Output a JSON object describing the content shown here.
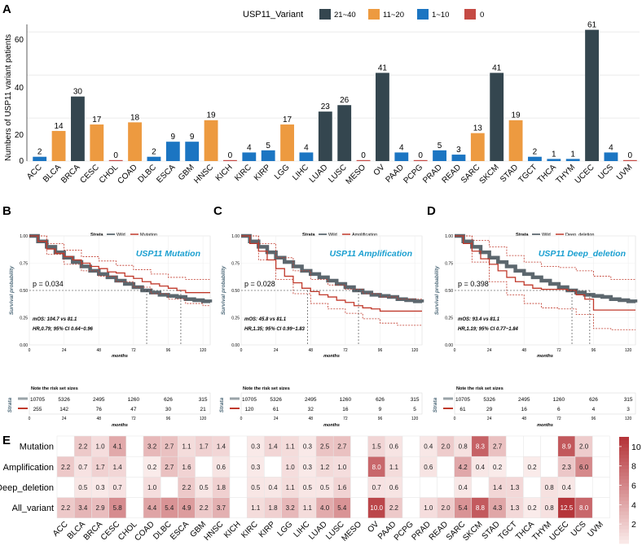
{
  "colors": {
    "c21_40": "#34464f",
    "c11_20": "#ed9a40",
    "c1_10": "#1b75c2",
    "c0": "#c54a44",
    "wild": "#3f4c55",
    "mut": "#c0392b",
    "heat_lo": "#fbeeed",
    "heat_hi": "#b5353a",
    "title": "#1a9fd0"
  },
  "panel_labels": {
    "A": "A",
    "B": "B",
    "C": "C",
    "D": "D",
    "E": "E"
  },
  "bar_panel": {
    "legend_title": "USP11_Variant",
    "legend_items": [
      "21~40",
      "11~20",
      "1~10",
      "0"
    ],
    "ylabel": "Numbers of USP11 variant patients",
    "yticks": [
      "0",
      "20",
      "40",
      "60"
    ]
  },
  "chart_data": [
    {
      "type": "bar",
      "title": "",
      "ylabel": "Numbers of USP11 variant patients",
      "ylim": [
        0,
        62
      ],
      "categories": [
        "ACC",
        "BLCA",
        "BRCA",
        "CESC",
        "CHOL",
        "COAD",
        "DLBC",
        "ESCA",
        "GBM",
        "HNSC",
        "KICH",
        "KIRC",
        "KIRP",
        "LGG",
        "LIHC",
        "LUAD",
        "LUSC",
        "MESO",
        "OV",
        "PAAD",
        "PCPG",
        "PRAD",
        "READ",
        "SARC",
        "SKCM",
        "STAD",
        "TGCT",
        "THCA",
        "THYM",
        "UCEC",
        "UCS",
        "UVM"
      ],
      "values": [
        2,
        14,
        30,
        17,
        0,
        18,
        2,
        9,
        9,
        19,
        0,
        4,
        5,
        17,
        4,
        23,
        26,
        0,
        41,
        4,
        0,
        5,
        3,
        13,
        41,
        19,
        2,
        1,
        1,
        61,
        4,
        0
      ],
      "value_labels": [
        "2",
        "14",
        "30",
        "17",
        "0",
        "18",
        "2",
        "9",
        "9",
        "19",
        "0",
        "4",
        "5",
        "17",
        "4",
        "23",
        "26",
        "0",
        "41",
        "4",
        "0",
        "5",
        "3",
        "13",
        "41",
        "19",
        "2",
        "1",
        "1",
        "61",
        "4",
        "0"
      ]
    },
    {
      "type": "line",
      "panel": "B",
      "title": "USP11 Mutation",
      "legend_title": "Strata",
      "legend": [
        "Wild",
        "Mutation"
      ],
      "xlabel": "months",
      "ylabel": "Survival probability",
      "xticks": [
        "0",
        "24",
        "48",
        "72",
        "96",
        "120"
      ],
      "yticks": [
        "0.00",
        "0.25",
        "0.50",
        "0.75",
        "1.00"
      ],
      "xlim": [
        0,
        125
      ],
      "pvalue": "p = 0.034",
      "stat1": "mOS: 104.7 vs 81.1",
      "stat2": "HR,0.79; 95% CI 0.64~0.96",
      "risk_title": "Note the risk set sizes",
      "risk_label": "Strata",
      "risk_xlabel": "months",
      "risk_wild": [
        "10705",
        "5326",
        "2495",
        "1260",
        "626",
        "315"
      ],
      "risk_variant": [
        "255",
        "142",
        "76",
        "47",
        "30",
        "21"
      ],
      "median_wild": 81.1,
      "median_variant": 104.7,
      "series": [
        {
          "name": "Wild",
          "x": [
            0,
            6,
            12,
            18,
            24,
            30,
            36,
            42,
            48,
            54,
            60,
            66,
            72,
            78,
            84,
            90,
            96,
            102,
            108,
            114,
            120,
            125
          ],
          "y": [
            1.0,
            0.95,
            0.9,
            0.85,
            0.8,
            0.76,
            0.72,
            0.68,
            0.65,
            0.62,
            0.59,
            0.56,
            0.53,
            0.5,
            0.48,
            0.46,
            0.45,
            0.44,
            0.42,
            0.41,
            0.4,
            0.39
          ]
        },
        {
          "name": "Mutation",
          "x": [
            0,
            6,
            12,
            18,
            24,
            30,
            36,
            42,
            48,
            54,
            60,
            66,
            72,
            78,
            84,
            90,
            96,
            102,
            108,
            114,
            120,
            125
          ],
          "y": [
            1.0,
            0.95,
            0.88,
            0.84,
            0.81,
            0.78,
            0.75,
            0.72,
            0.7,
            0.67,
            0.66,
            0.63,
            0.61,
            0.58,
            0.56,
            0.54,
            0.52,
            0.5,
            0.48,
            0.48,
            0.48,
            0.48
          ]
        },
        {
          "name": "Mutation CI upper",
          "x": [
            0,
            12,
            24,
            36,
            48,
            60,
            72,
            84,
            96,
            108,
            120,
            125
          ],
          "y": [
            1.0,
            0.93,
            0.87,
            0.81,
            0.77,
            0.73,
            0.69,
            0.65,
            0.62,
            0.6,
            0.6,
            0.6
          ]
        },
        {
          "name": "Mutation CI lower",
          "x": [
            0,
            12,
            24,
            36,
            48,
            60,
            72,
            84,
            96,
            108,
            120,
            125
          ],
          "y": [
            1.0,
            0.83,
            0.74,
            0.68,
            0.63,
            0.58,
            0.53,
            0.47,
            0.42,
            0.38,
            0.36,
            0.36
          ]
        }
      ]
    },
    {
      "type": "line",
      "panel": "C",
      "title": "USP11 Amplification",
      "legend_title": "Strata",
      "legend": [
        "Wild",
        "Amplification"
      ],
      "xlabel": "months",
      "ylabel": "Survival probability",
      "xticks": [
        "0",
        "24",
        "48",
        "72",
        "96",
        "120"
      ],
      "yticks": [
        "0.00",
        "0.25",
        "0.50",
        "0.75",
        "1.00"
      ],
      "xlim": [
        0,
        125
      ],
      "pvalue": "p = 0.028",
      "stat1": "mOS: 45.8 vs 81.1",
      "stat2": "HR,1.35; 95% CI 0.99~1.83",
      "risk_title": "Note the risk set sizes",
      "risk_label": "Strata",
      "risk_xlabel": "months",
      "risk_wild": [
        "10705",
        "5326",
        "2495",
        "1260",
        "626",
        "315"
      ],
      "risk_variant": [
        "120",
        "61",
        "32",
        "16",
        "9",
        "5"
      ],
      "median_wild": 81.1,
      "median_variant": 45.8,
      "series": [
        {
          "name": "Wild",
          "x": [
            0,
            6,
            12,
            18,
            24,
            30,
            36,
            42,
            48,
            54,
            60,
            66,
            72,
            78,
            84,
            90,
            96,
            102,
            108,
            114,
            120,
            125
          ],
          "y": [
            1.0,
            0.95,
            0.9,
            0.85,
            0.8,
            0.76,
            0.72,
            0.68,
            0.65,
            0.62,
            0.59,
            0.56,
            0.53,
            0.5,
            0.48,
            0.46,
            0.45,
            0.44,
            0.42,
            0.41,
            0.4,
            0.39
          ]
        },
        {
          "name": "Amplification",
          "x": [
            0,
            6,
            12,
            18,
            24,
            30,
            36,
            42,
            48,
            54,
            60,
            66,
            72,
            78,
            84,
            90,
            96,
            102,
            108,
            114,
            120,
            125
          ],
          "y": [
            1.0,
            0.93,
            0.86,
            0.78,
            0.7,
            0.63,
            0.57,
            0.52,
            0.49,
            0.46,
            0.44,
            0.41,
            0.39,
            0.36,
            0.34,
            0.33,
            0.31,
            0.31,
            0.31,
            0.31,
            0.31,
            0.31
          ]
        },
        {
          "name": "Amplification CI upper",
          "x": [
            0,
            12,
            24,
            36,
            48,
            60,
            72,
            84,
            96,
            108,
            120,
            125
          ],
          "y": [
            1.0,
            0.93,
            0.8,
            0.68,
            0.6,
            0.55,
            0.51,
            0.47,
            0.44,
            0.42,
            0.42,
            0.42
          ]
        },
        {
          "name": "Amplification CI lower",
          "x": [
            0,
            12,
            24,
            36,
            48,
            60,
            72,
            84,
            96,
            108,
            120,
            125
          ],
          "y": [
            1.0,
            0.78,
            0.6,
            0.47,
            0.38,
            0.33,
            0.29,
            0.24,
            0.2,
            0.18,
            0.18,
            0.18
          ]
        }
      ]
    },
    {
      "type": "line",
      "panel": "D",
      "title": "USP11 Deep_deletion",
      "legend_title": "Strata",
      "legend": [
        "Wild",
        "Deep_deletion"
      ],
      "xlabel": "months",
      "ylabel": "Survival probability",
      "xticks": [
        "0",
        "24",
        "48",
        "72",
        "96",
        "120"
      ],
      "yticks": [
        "0.00",
        "0.25",
        "0.50",
        "0.75",
        "1.00"
      ],
      "xlim": [
        0,
        125
      ],
      "pvalue": "p = 0.398",
      "stat1": "mOS: 93.4 vs 81.1",
      "stat2": "HR,1.19; 95% CI 0.77~1.84",
      "risk_title": "Note the risk set sizes",
      "risk_label": "Strata",
      "risk_xlabel": "months",
      "risk_wild": [
        "10705",
        "5326",
        "2495",
        "1260",
        "626",
        "315"
      ],
      "risk_variant": [
        "61",
        "29",
        "16",
        "6",
        "4",
        "3"
      ],
      "median_wild": 81.1,
      "median_variant": 93.4,
      "series": [
        {
          "name": "Wild",
          "x": [
            0,
            6,
            12,
            18,
            24,
            30,
            36,
            42,
            48,
            54,
            60,
            66,
            72,
            78,
            84,
            90,
            96,
            102,
            108,
            114,
            120,
            125
          ],
          "y": [
            1.0,
            0.95,
            0.9,
            0.85,
            0.8,
            0.76,
            0.72,
            0.68,
            0.65,
            0.62,
            0.59,
            0.56,
            0.53,
            0.5,
            0.48,
            0.46,
            0.45,
            0.44,
            0.42,
            0.41,
            0.4,
            0.39
          ]
        },
        {
          "name": "Deep_deletion",
          "x": [
            0,
            6,
            12,
            18,
            24,
            30,
            36,
            42,
            48,
            54,
            60,
            66,
            72,
            78,
            84,
            90,
            96,
            102,
            108,
            114,
            120,
            125
          ],
          "y": [
            1.0,
            0.93,
            0.86,
            0.79,
            0.74,
            0.68,
            0.62,
            0.58,
            0.55,
            0.52,
            0.51,
            0.51,
            0.51,
            0.5,
            0.46,
            0.42,
            0.32,
            0.32,
            0.32,
            0.32,
            0.32,
            0.32
          ]
        },
        {
          "name": "Deep_deletion CI upper",
          "x": [
            0,
            12,
            24,
            36,
            48,
            60,
            72,
            84,
            96,
            108,
            120,
            125
          ],
          "y": [
            1.0,
            0.96,
            0.9,
            0.82,
            0.76,
            0.72,
            0.71,
            0.68,
            0.63,
            0.6,
            0.6,
            0.6
          ]
        },
        {
          "name": "Deep_deletion CI lower",
          "x": [
            0,
            12,
            24,
            36,
            48,
            60,
            72,
            84,
            96,
            108,
            120,
            125
          ],
          "y": [
            1.0,
            0.76,
            0.58,
            0.46,
            0.38,
            0.34,
            0.33,
            0.28,
            0.15,
            0.14,
            0.14,
            0.14
          ]
        }
      ]
    },
    {
      "type": "heatmap",
      "panel": "E",
      "rows": [
        "Mutation",
        "Amplification",
        "Deep_deletion",
        "All_variant"
      ],
      "columns": [
        "ACC",
        "BLCA",
        "BRCA",
        "CESC",
        "CHOL",
        "COAD",
        "DLBC",
        "ESCA",
        "GBM",
        "HNSC",
        "KICH",
        "KIRC",
        "KIRP",
        "LGG",
        "LIHC",
        "LUAD",
        "LUSC",
        "MESO",
        "OV",
        "PAAD",
        "PCPG",
        "PRAD",
        "READ",
        "SARC",
        "SKCM",
        "STAD",
        "TGCT",
        "THCA",
        "THYM",
        "UCEC",
        "UCS",
        "UVM"
      ],
      "values": [
        [
          null,
          2.2,
          1.0,
          4.1,
          null,
          3.2,
          2.7,
          1.1,
          1.7,
          1.4,
          null,
          0.3,
          1.4,
          1.1,
          0.3,
          2.5,
          2.7,
          null,
          1.5,
          0.6,
          null,
          0.4,
          2.0,
          0.8,
          8.3,
          2.7,
          null,
          null,
          null,
          8.9,
          2.0,
          null
        ],
        [
          2.2,
          0.7,
          1.7,
          1.4,
          null,
          0.2,
          2.7,
          1.6,
          null,
          0.6,
          null,
          0.3,
          null,
          1.0,
          0.3,
          1.2,
          1.0,
          null,
          8.0,
          1.1,
          null,
          0.6,
          null,
          4.2,
          0.4,
          0.2,
          null,
          0.2,
          null,
          2.3,
          6.0,
          null
        ],
        [
          null,
          0.5,
          0.3,
          0.7,
          null,
          1.0,
          null,
          2.2,
          0.5,
          1.8,
          null,
          0.5,
          0.4,
          1.1,
          0.5,
          0.5,
          1.6,
          null,
          0.7,
          0.6,
          null,
          null,
          null,
          0.4,
          null,
          1.4,
          1.3,
          null,
          0.8,
          0.4,
          null,
          null
        ],
        [
          2.2,
          3.4,
          2.9,
          5.8,
          null,
          4.4,
          5.4,
          4.9,
          2.2,
          3.7,
          null,
          1.1,
          1.8,
          3.2,
          1.1,
          4.0,
          5.4,
          null,
          10.0,
          2.2,
          null,
          1.0,
          2.0,
          5.4,
          8.8,
          4.3,
          1.3,
          0.2,
          0.8,
          12.5,
          8.0,
          null
        ]
      ],
      "legend_ticks": [
        "2",
        "4",
        "6",
        "8",
        "10"
      ],
      "legend_range": [
        0,
        11
      ]
    }
  ]
}
